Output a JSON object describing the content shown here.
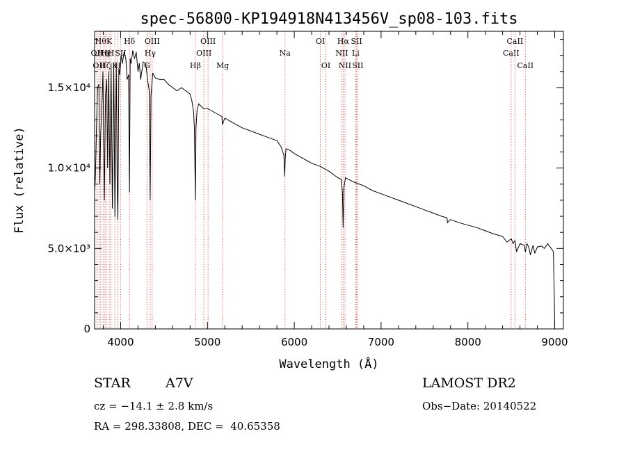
{
  "chart_data": {
    "type": "line",
    "title": "spec-56800-KP194918N413456V_sp08-103.fits",
    "xlabel": "Wavelength (Å)",
    "ylabel": "Flux (relative)",
    "xlim": [
      3700,
      9100
    ],
    "ylim": [
      0,
      18500
    ],
    "x_ticks": [
      {
        "value": 4000,
        "label": "4000"
      },
      {
        "value": 5000,
        "label": "5000"
      },
      {
        "value": 6000,
        "label": "6000"
      },
      {
        "value": 7000,
        "label": "7000"
      },
      {
        "value": 8000,
        "label": "8000"
      },
      {
        "value": 9000,
        "label": "9000"
      }
    ],
    "y_ticks": [
      {
        "value": 0,
        "label": "0"
      },
      {
        "value": 5000,
        "label": "5.0×10³"
      },
      {
        "value": 10000,
        "label": "1.0×10⁴"
      },
      {
        "value": 15000,
        "label": "1.5×10⁴"
      }
    ],
    "grid": false,
    "legend": "none",
    "line_color": "#000000",
    "marker_color": "#e8473f",
    "series": [
      {
        "x": [
          3700,
          3710,
          3722,
          3734,
          3750,
          3760,
          3770,
          3782,
          3796,
          3812,
          3826,
          3840,
          3850,
          3862,
          3876,
          3890,
          3905,
          3920,
          3934,
          3950,
          3960,
          3968,
          3980,
          3990,
          4005,
          4020,
          4040,
          4060,
          4075,
          4092,
          4101,
          4110,
          4120,
          4140,
          4160,
          4180,
          4200,
          4215,
          4230,
          4260,
          4290,
          4310,
          4330,
          4340,
          4350,
          4370,
          4400,
          4450,
          4500,
          4550,
          4600,
          4650,
          4700,
          4750,
          4800,
          4820,
          4840,
          4850,
          4856,
          4861,
          4868,
          4880,
          4900,
          4950,
          5000,
          5100,
          5167,
          5172,
          5200,
          5300,
          5400,
          5500,
          5600,
          5700,
          5800,
          5850,
          5880,
          5890,
          5896,
          5905,
          5950,
          6000,
          6100,
          6200,
          6300,
          6400,
          6500,
          6540,
          6555,
          6563,
          6572,
          6590,
          6620,
          6700,
          6800,
          6900,
          7000,
          7100,
          7200,
          7300,
          7400,
          7500,
          7600,
          7700,
          7760,
          7765,
          7800,
          7900,
          8000,
          8100,
          8200,
          8300,
          8400,
          8450,
          8500,
          8520,
          8542,
          8560,
          8600,
          8650,
          8662,
          8680,
          8700,
          8720,
          8750,
          8770,
          8800,
          8850,
          8880,
          8920,
          8960,
          8985,
          8995,
          9000
        ],
        "y": [
          8500,
          9500,
          12500,
          15000,
          15200,
          9000,
          12000,
          13500,
          16000,
          8000,
          14500,
          15500,
          10000,
          16000,
          9000,
          16500,
          7500,
          16500,
          7000,
          16500,
          9000,
          6800,
          16200,
          15800,
          17000,
          16500,
          17200,
          16800,
          15500,
          15800,
          8500,
          16800,
          16500,
          17300,
          16800,
          17200,
          16000,
          16500,
          15500,
          16600,
          16500,
          15500,
          14800,
          8000,
          14500,
          15900,
          15600,
          15500,
          15500,
          15200,
          15000,
          14800,
          15000,
          14800,
          14600,
          14200,
          13500,
          12500,
          10000,
          8000,
          12500,
          13600,
          14000,
          13700,
          13700,
          13400,
          13200,
          12700,
          13100,
          12800,
          12500,
          12300,
          12100,
          11900,
          11700,
          11300,
          10800,
          9500,
          10600,
          11200,
          11100,
          10900,
          10600,
          10300,
          10100,
          9800,
          9400,
          9300,
          8500,
          6300,
          8800,
          9400,
          9300,
          9100,
          8900,
          8600,
          8400,
          8200,
          8000,
          7800,
          7600,
          7400,
          7200,
          7000,
          6900,
          6600,
          6800,
          6600,
          6450,
          6300,
          6100,
          5900,
          5750,
          5400,
          5600,
          5300,
          5500,
          4800,
          5300,
          5200,
          4800,
          5300,
          5100,
          4600,
          5200,
          4700,
          5100,
          5150,
          5000,
          5300,
          5000,
          4800,
          2000,
          0
        ]
      }
    ],
    "line_markers": [
      {
        "x": 3727,
        "label": "OII",
        "row": 2
      },
      {
        "x": 3750,
        "label": "OII",
        "row": 3
      },
      {
        "x": 3770,
        "label": "Hθ",
        "row": 1
      },
      {
        "x": 3798,
        "label": "Hη",
        "row": 2
      },
      {
        "x": 3820,
        "label": "Hζ",
        "row": 3
      },
      {
        "x": 3835,
        "label": "Hε",
        "row": 2
      },
      {
        "x": 3869,
        "label": "K",
        "row": 1
      },
      {
        "x": 3889,
        "label": "H",
        "row": 2
      },
      {
        "x": 3934,
        "label": "K",
        "row": 3
      },
      {
        "x": 3968,
        "label": "H",
        "row": 3
      },
      {
        "x": 4000,
        "label": "SII",
        "row": 2
      },
      {
        "x": 4102,
        "label": "Hδ",
        "row": 1
      },
      {
        "x": 4304,
        "label": "G",
        "row": 3
      },
      {
        "x": 4340,
        "label": "Hγ",
        "row": 2
      },
      {
        "x": 4363,
        "label": "OIII",
        "row": 1
      },
      {
        "x": 4861,
        "label": "Hβ",
        "row": 3
      },
      {
        "x": 4959,
        "label": "OIII",
        "row": 2
      },
      {
        "x": 5007,
        "label": "OIII",
        "row": 1
      },
      {
        "x": 5175,
        "label": "Mg",
        "row": 3
      },
      {
        "x": 5893,
        "label": "Na",
        "row": 2
      },
      {
        "x": 6300,
        "label": "OI",
        "row": 1
      },
      {
        "x": 6364,
        "label": "OI",
        "row": 3
      },
      {
        "x": 6548,
        "label": "NII",
        "row": 2
      },
      {
        "x": 6563,
        "label": "Hα",
        "row": 1
      },
      {
        "x": 6584,
        "label": "NII",
        "row": 3
      },
      {
        "x": 6707,
        "label": "Li",
        "row": 2
      },
      {
        "x": 6717,
        "label": "SII",
        "row": 1
      },
      {
        "x": 6731,
        "label": "SII",
        "row": 3
      },
      {
        "x": 8498,
        "label": "CaII",
        "row": 2
      },
      {
        "x": 8542,
        "label": "CaII",
        "row": 1
      },
      {
        "x": 8662,
        "label": "CaII",
        "row": 3
      }
    ]
  },
  "info": {
    "object_type": "STAR",
    "subclass": "A7V",
    "survey": "LAMOST DR2",
    "redshift": "cz = −14.1 ± 2.8 km/s",
    "obs_date": "Obs−Date: 20140522",
    "coords": "RA = 298.33808, DEC =  40.65358"
  }
}
